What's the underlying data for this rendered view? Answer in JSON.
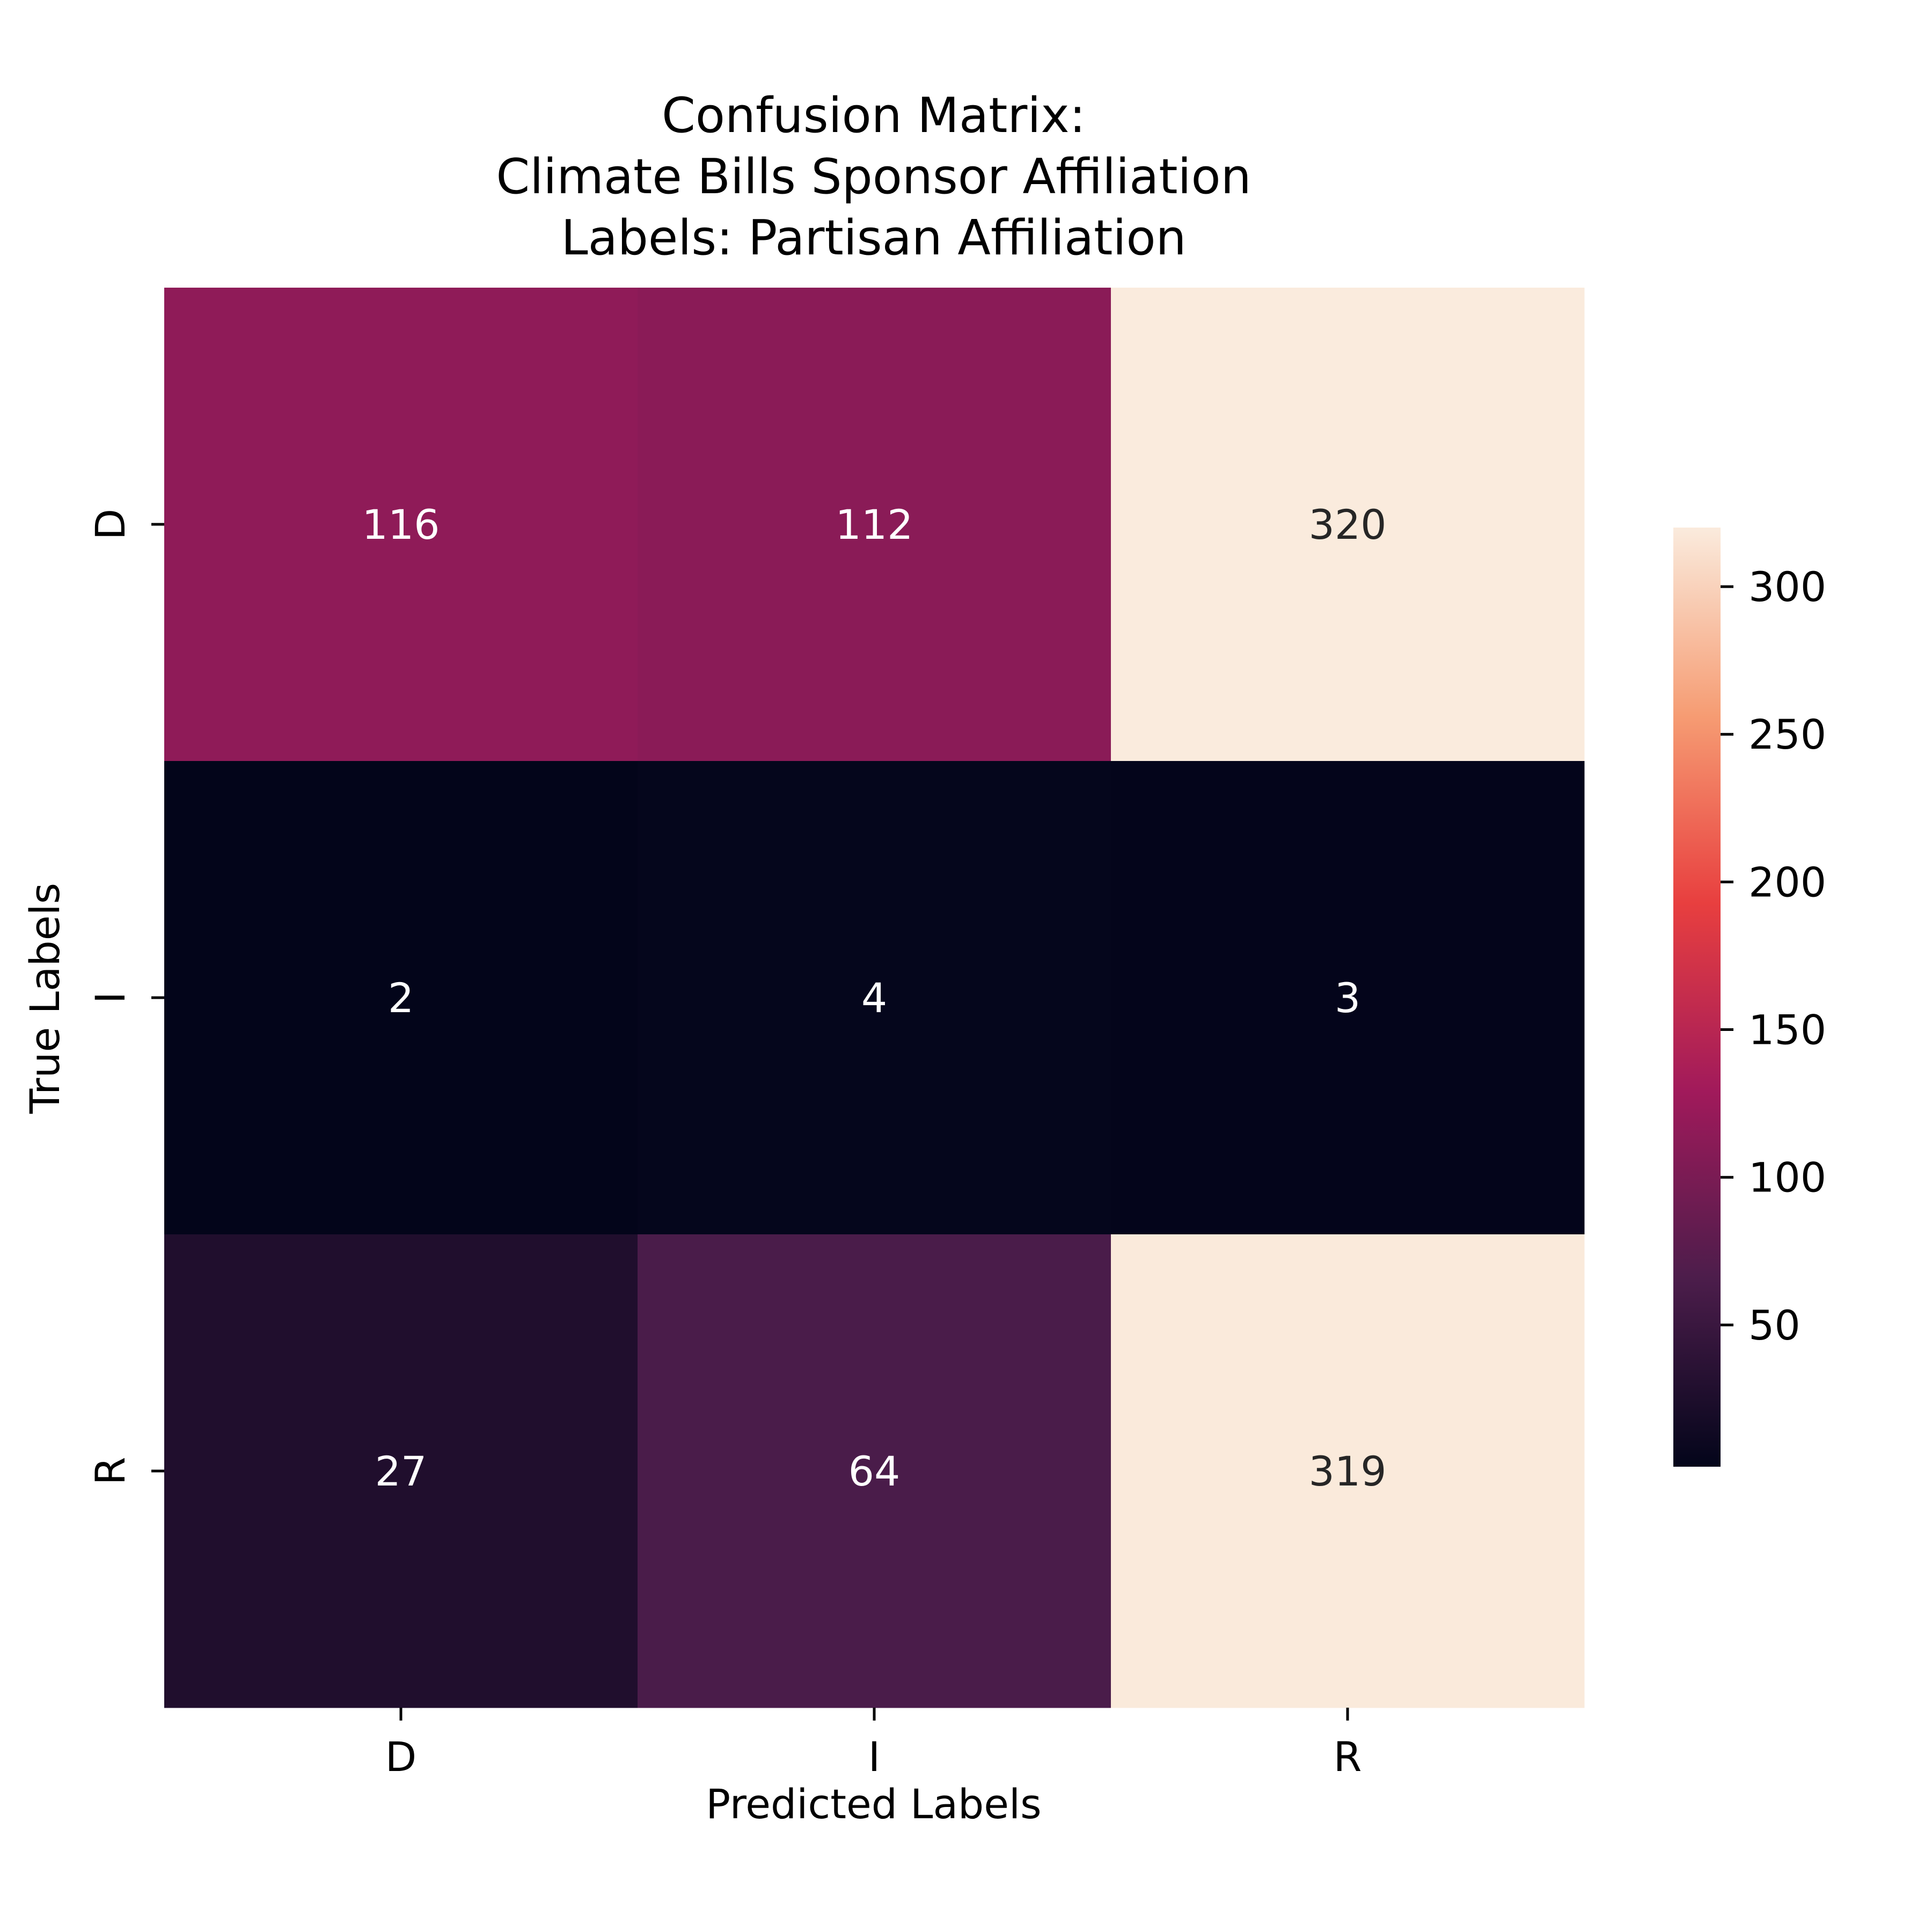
{
  "chart_data": {
    "type": "heatmap",
    "title": [
      "Confusion Matrix:",
      "Climate Bills Sponsor Affiliation",
      "Labels: Partisan Affiliation"
    ],
    "xlabel": "Predicted Labels",
    "ylabel": "True Labels",
    "x_categories": [
      "D",
      "I",
      "R"
    ],
    "y_categories": [
      "D",
      "I",
      "R"
    ],
    "values": [
      [
        116,
        112,
        320
      ],
      [
        2,
        4,
        3
      ],
      [
        27,
        64,
        319
      ]
    ],
    "value_range": [
      2,
      320
    ],
    "colormap": "rocket",
    "colormap_stops": [
      "#03051a",
      "#4c1d4b",
      "#a11a5b",
      "#e83f3f",
      "#f69c73",
      "#faebdd"
    ],
    "annotation_colors": {
      "light_cells": "#262626",
      "dark_cells": "#ffffff"
    },
    "colorbar": {
      "ticks": [
        50,
        100,
        150,
        200,
        250,
        300
      ],
      "tick_labels": [
        "50",
        "100",
        "150",
        "200",
        "250",
        "300"
      ]
    },
    "grid": false,
    "legend": "colorbar-right"
  }
}
